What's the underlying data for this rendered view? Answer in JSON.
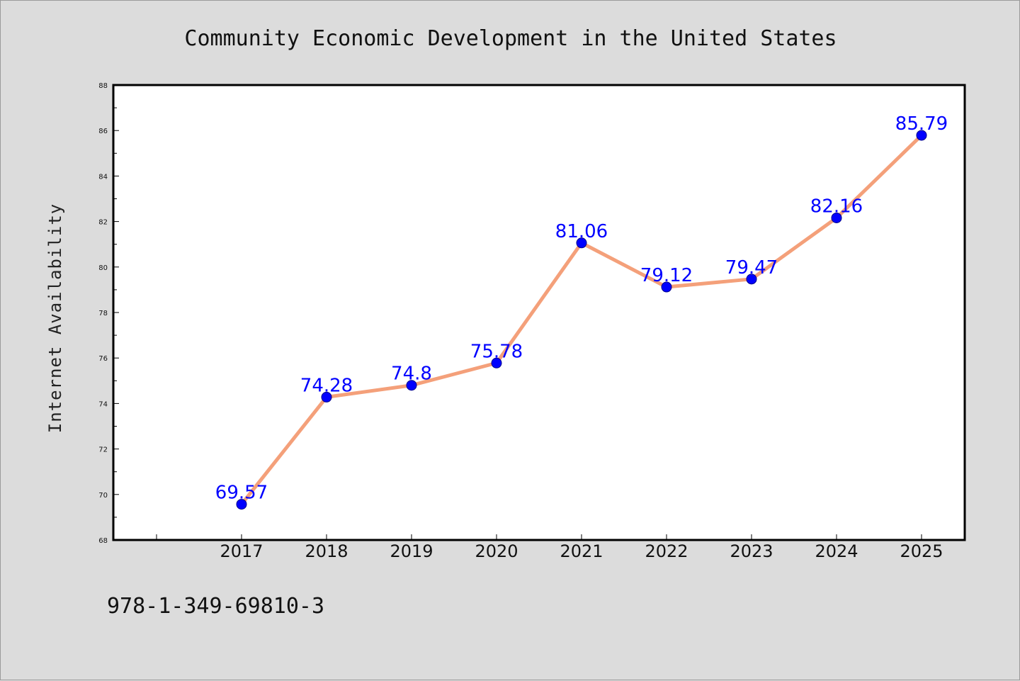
{
  "chart_data": {
    "type": "line",
    "title": "Community Economic Development in the United States",
    "xlabel": "",
    "ylabel": "Internet Availability",
    "categories": [
      "2017",
      "2018",
      "2019",
      "2020",
      "2021",
      "2022",
      "2023",
      "2024",
      "2025"
    ],
    "series": [
      {
        "values": [
          69.57,
          74.28,
          74.8,
          75.78,
          81.06,
          79.12,
          79.47,
          82.16,
          85.79
        ],
        "labels": [
          "69.57",
          "74.28",
          "74.8",
          "75.78",
          "81.06",
          "79.12",
          "79.47",
          "82.16",
          "85.79"
        ],
        "line_color": "#f4a07a",
        "marker_color": "#0000ff"
      }
    ],
    "ylim": [
      68,
      88
    ],
    "yticks": [
      "68",
      "70",
      "72",
      "74",
      "76",
      "78",
      "80",
      "82",
      "84",
      "86",
      "88"
    ],
    "grid": false,
    "legend": "none"
  },
  "footer": {
    "code": "978-1-349-69810-3"
  },
  "colors": {
    "background": "#dcdcdc",
    "plot_background": "#ffffff",
    "line": "#f4a07a",
    "marker": "#0000ff",
    "data_label": "#0000ff"
  }
}
